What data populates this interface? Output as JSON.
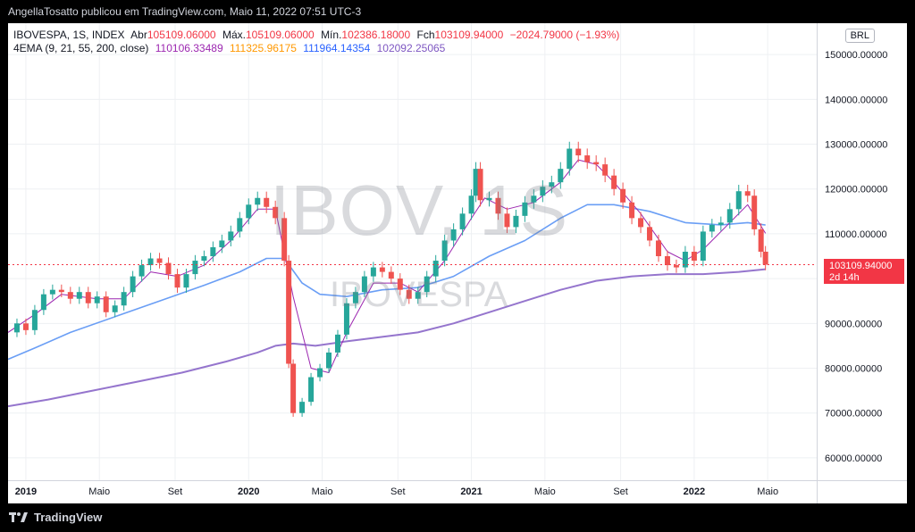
{
  "header": {
    "publish_text": "AngellaTosatto publicou em TradingView.com, Maio 11, 2022 07:51 UTC-3"
  },
  "footer": {
    "brand": "TradingView"
  },
  "chart_data": {
    "type": "candlestick",
    "symbol_line": {
      "symbol": "IBOVESPA, 1S, INDEX",
      "open_label": "Abr",
      "open": "105109.06000",
      "high_label": "Máx.",
      "high": "105109.06000",
      "low_label": "Mín.",
      "low": "102386.18000",
      "close_label": "Fch",
      "close": "103109.94000",
      "change": "−2024.79000 (−1.93%)"
    },
    "indicator_line": {
      "name": "4EMA (9, 21, 55, 200, close)",
      "values": [
        "110106.33489",
        "111325.96175",
        "111964.14354",
        "102092.25065"
      ],
      "colors": [
        "#9c27b0",
        "#ff9800",
        "#2962ff",
        "#7e57c2"
      ]
    },
    "currency": "BRL",
    "watermark": "IBOV, 1S",
    "watermark_sub": "IBOVESPA",
    "last_price": "103109.94000",
    "countdown": "2d 14h",
    "ylim": [
      55000,
      157000
    ],
    "y_ticks": [
      60000,
      70000,
      80000,
      90000,
      100000,
      110000,
      120000,
      130000,
      140000,
      150000
    ],
    "y_tick_labels": [
      "60000.00000",
      "70000.00000",
      "80000.00000",
      "90000.00000",
      "100000.00000",
      "110000.00000",
      "120000.00000",
      "130000.00000",
      "140000.00000",
      "150000.00000"
    ],
    "x_range": [
      2018.92,
      2022.55
    ],
    "x_ticks": [
      {
        "t": 2019.0,
        "label": "2019",
        "bold": true
      },
      {
        "t": 2019.33,
        "label": "Maio",
        "bold": false
      },
      {
        "t": 2019.67,
        "label": "Set",
        "bold": false
      },
      {
        "t": 2020.0,
        "label": "2020",
        "bold": true
      },
      {
        "t": 2020.33,
        "label": "Maio",
        "bold": false
      },
      {
        "t": 2020.67,
        "label": "Set",
        "bold": false
      },
      {
        "t": 2021.0,
        "label": "2021",
        "bold": true
      },
      {
        "t": 2021.33,
        "label": "Maio",
        "bold": false
      },
      {
        "t": 2021.67,
        "label": "Set",
        "bold": false
      },
      {
        "t": 2022.0,
        "label": "2022",
        "bold": true
      },
      {
        "t": 2022.33,
        "label": "Maio",
        "bold": false
      }
    ],
    "closes": [
      [
        2018.92,
        88000
      ],
      [
        2018.96,
        90000
      ],
      [
        2019.0,
        88500
      ],
      [
        2019.04,
        93000
      ],
      [
        2019.08,
        96500
      ],
      [
        2019.12,
        97500
      ],
      [
        2019.16,
        97000
      ],
      [
        2019.2,
        95500
      ],
      [
        2019.24,
        97000
      ],
      [
        2019.28,
        94500
      ],
      [
        2019.32,
        96000
      ],
      [
        2019.36,
        92500
      ],
      [
        2019.4,
        94000
      ],
      [
        2019.44,
        97000
      ],
      [
        2019.48,
        100500
      ],
      [
        2019.52,
        103000
      ],
      [
        2019.56,
        104500
      ],
      [
        2019.6,
        103500
      ],
      [
        2019.64,
        101000
      ],
      [
        2019.68,
        98000
      ],
      [
        2019.72,
        101000
      ],
      [
        2019.76,
        104000
      ],
      [
        2019.8,
        105000
      ],
      [
        2019.84,
        107000
      ],
      [
        2019.88,
        108500
      ],
      [
        2019.92,
        110500
      ],
      [
        2019.96,
        113500
      ],
      [
        2020.0,
        116500
      ],
      [
        2020.04,
        118000
      ],
      [
        2020.08,
        116000
      ],
      [
        2020.12,
        113500
      ],
      [
        2020.16,
        104000
      ],
      [
        2020.18,
        81000
      ],
      [
        2020.2,
        70000
      ],
      [
        2020.24,
        72500
      ],
      [
        2020.28,
        78000
      ],
      [
        2020.32,
        80000
      ],
      [
        2020.36,
        83500
      ],
      [
        2020.4,
        87500
      ],
      [
        2020.44,
        94500
      ],
      [
        2020.48,
        97000
      ],
      [
        2020.52,
        100500
      ],
      [
        2020.56,
        102500
      ],
      [
        2020.6,
        101500
      ],
      [
        2020.64,
        100000
      ],
      [
        2020.68,
        97500
      ],
      [
        2020.72,
        95500
      ],
      [
        2020.76,
        97000
      ],
      [
        2020.8,
        100500
      ],
      [
        2020.84,
        104000
      ],
      [
        2020.88,
        108500
      ],
      [
        2020.92,
        111000
      ],
      [
        2020.96,
        114500
      ],
      [
        2021.0,
        118500
      ],
      [
        2021.02,
        124500
      ],
      [
        2021.04,
        117500
      ],
      [
        2021.08,
        118000
      ],
      [
        2021.12,
        114500
      ],
      [
        2021.16,
        111500
      ],
      [
        2021.2,
        114000
      ],
      [
        2021.24,
        117000
      ],
      [
        2021.28,
        118500
      ],
      [
        2021.32,
        120500
      ],
      [
        2021.36,
        121500
      ],
      [
        2021.4,
        124500
      ],
      [
        2021.44,
        129000
      ],
      [
        2021.48,
        127500
      ],
      [
        2021.52,
        126000
      ],
      [
        2021.56,
        125500
      ],
      [
        2021.6,
        123000
      ],
      [
        2021.64,
        120000
      ],
      [
        2021.68,
        117000
      ],
      [
        2021.72,
        113500
      ],
      [
        2021.76,
        111500
      ],
      [
        2021.8,
        108500
      ],
      [
        2021.84,
        105000
      ],
      [
        2021.88,
        103000
      ],
      [
        2021.92,
        102500
      ],
      [
        2021.96,
        106000
      ],
      [
        2022.0,
        104000
      ],
      [
        2022.04,
        110500
      ],
      [
        2022.08,
        112000
      ],
      [
        2022.12,
        112500
      ],
      [
        2022.16,
        115500
      ],
      [
        2022.2,
        119500
      ],
      [
        2022.24,
        118500
      ],
      [
        2022.27,
        111000
      ],
      [
        2022.3,
        106000
      ],
      [
        2022.32,
        103110
      ]
    ],
    "ema9": [
      [
        2018.92,
        88000
      ],
      [
        2019.04,
        92000
      ],
      [
        2019.16,
        96500
      ],
      [
        2019.32,
        95500
      ],
      [
        2019.44,
        95500
      ],
      [
        2019.56,
        101500
      ],
      [
        2019.68,
        100500
      ],
      [
        2019.8,
        103000
      ],
      [
        2019.92,
        108500
      ],
      [
        2020.04,
        115500
      ],
      [
        2020.12,
        115500
      ],
      [
        2020.2,
        96000
      ],
      [
        2020.28,
        80000
      ],
      [
        2020.36,
        79000
      ],
      [
        2020.44,
        88000
      ],
      [
        2020.56,
        99000
      ],
      [
        2020.68,
        99000
      ],
      [
        2020.76,
        97000
      ],
      [
        2020.88,
        104000
      ],
      [
        2021.0,
        113500
      ],
      [
        2021.06,
        118000
      ],
      [
        2021.16,
        115500
      ],
      [
        2021.28,
        117000
      ],
      [
        2021.4,
        121500
      ],
      [
        2021.48,
        126500
      ],
      [
        2021.56,
        125500
      ],
      [
        2021.64,
        121500
      ],
      [
        2021.76,
        114500
      ],
      [
        2021.88,
        106000
      ],
      [
        2021.96,
        104000
      ],
      [
        2022.04,
        106500
      ],
      [
        2022.16,
        112500
      ],
      [
        2022.24,
        116500
      ],
      [
        2022.32,
        110100
      ]
    ],
    "ema55": [
      [
        2018.92,
        82000
      ],
      [
        2019.04,
        84500
      ],
      [
        2019.2,
        88000
      ],
      [
        2019.4,
        91500
      ],
      [
        2019.6,
        95000
      ],
      [
        2019.8,
        98500
      ],
      [
        2019.96,
        101500
      ],
      [
        2020.08,
        104500
      ],
      [
        2020.16,
        104500
      ],
      [
        2020.24,
        99000
      ],
      [
        2020.32,
        96500
      ],
      [
        2020.44,
        96000
      ],
      [
        2020.6,
        97500
      ],
      [
        2020.76,
        98000
      ],
      [
        2020.92,
        100500
      ],
      [
        2021.08,
        105000
      ],
      [
        2021.24,
        108500
      ],
      [
        2021.4,
        113500
      ],
      [
        2021.52,
        116500
      ],
      [
        2021.64,
        116500
      ],
      [
        2021.8,
        115000
      ],
      [
        2021.96,
        112500
      ],
      [
        2022.12,
        112000
      ],
      [
        2022.24,
        112500
      ],
      [
        2022.32,
        111964
      ]
    ],
    "ema200": [
      [
        2018.92,
        71500
      ],
      [
        2019.1,
        73000
      ],
      [
        2019.3,
        75000
      ],
      [
        2019.5,
        77000
      ],
      [
        2019.7,
        79000
      ],
      [
        2019.9,
        81500
      ],
      [
        2020.04,
        83500
      ],
      [
        2020.12,
        85000
      ],
      [
        2020.2,
        85500
      ],
      [
        2020.3,
        85000
      ],
      [
        2020.44,
        86000
      ],
      [
        2020.6,
        87000
      ],
      [
        2020.76,
        88000
      ],
      [
        2020.92,
        90000
      ],
      [
        2021.08,
        92500
      ],
      [
        2021.24,
        95000
      ],
      [
        2021.4,
        97500
      ],
      [
        2021.56,
        99500
      ],
      [
        2021.72,
        100500
      ],
      [
        2021.88,
        101000
      ],
      [
        2022.04,
        101000
      ],
      [
        2022.2,
        101500
      ],
      [
        2022.32,
        102092
      ]
    ]
  }
}
